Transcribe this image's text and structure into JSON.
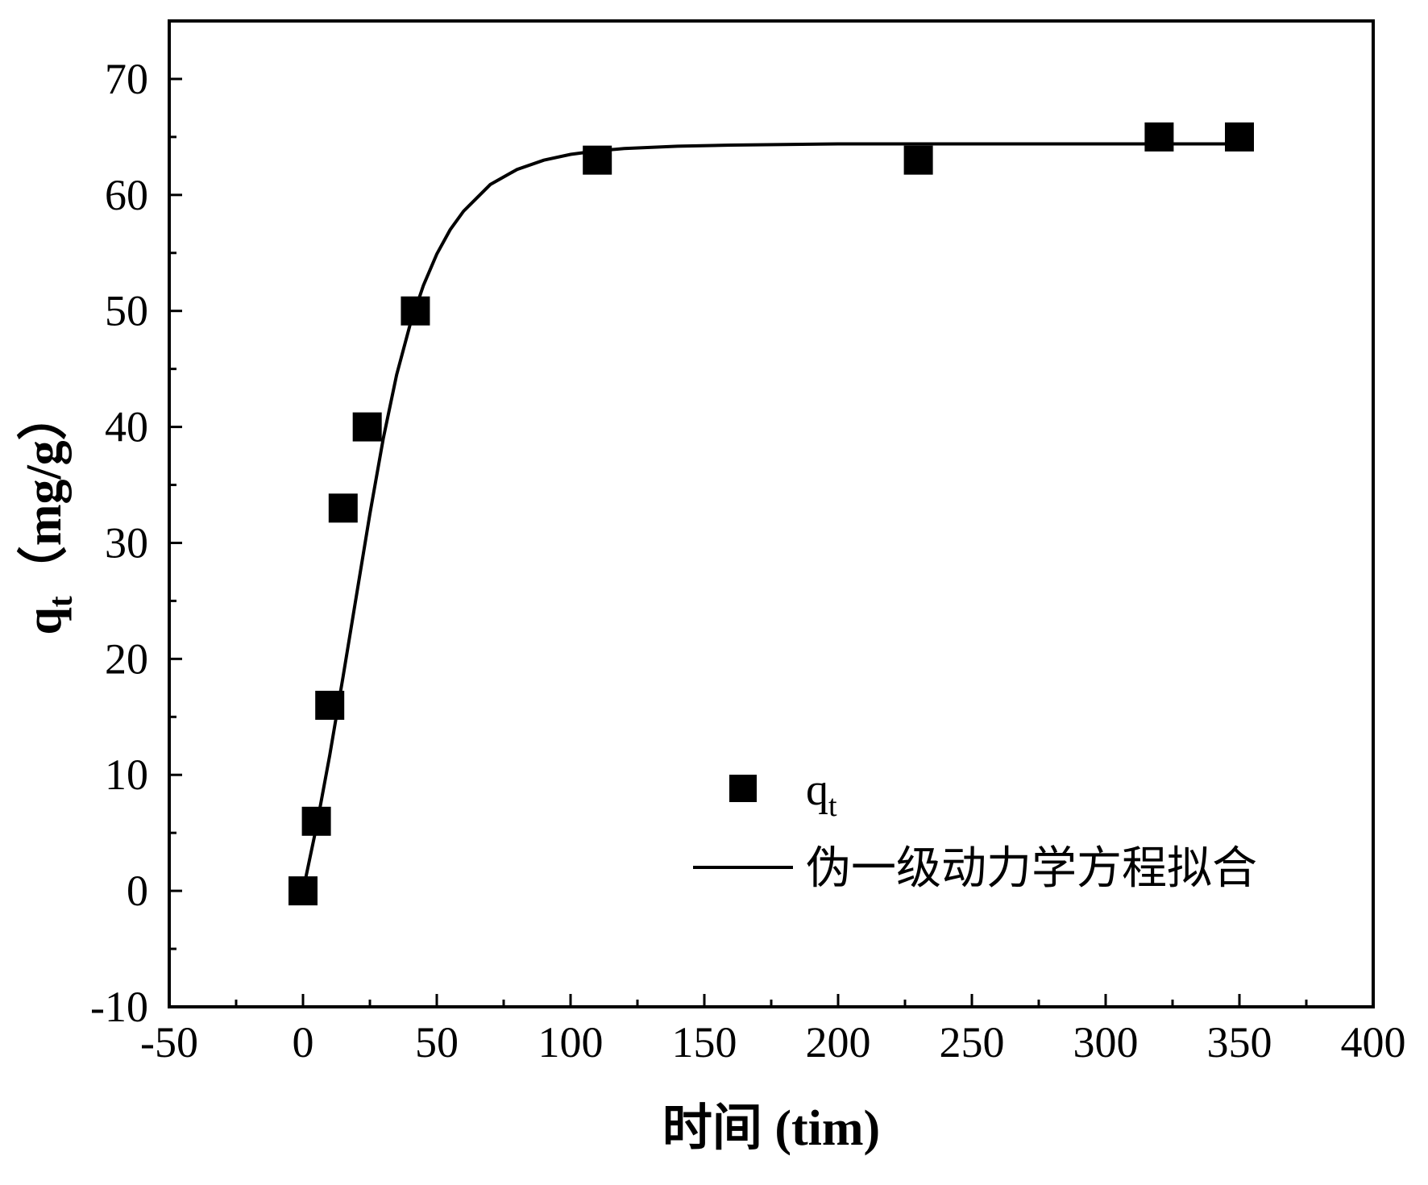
{
  "chart_data": {
    "type": "scatter",
    "title": "",
    "xlabel": "时间 (tim)",
    "ylabel": "q_t（mg/g）",
    "ylabel_parts": {
      "main": "q",
      "sub": "t",
      "unit": "（mg/g）"
    },
    "xlim": [
      -50,
      400
    ],
    "ylim": [
      -10,
      75
    ],
    "x_ticks": [
      -50,
      0,
      50,
      100,
      150,
      200,
      250,
      300,
      350,
      400
    ],
    "y_ticks": [
      -10,
      0,
      10,
      20,
      30,
      40,
      50,
      60,
      70
    ],
    "x_tick_labels": [
      "-50",
      "0",
      "50",
      "100",
      "150",
      "200",
      "250",
      "300",
      "350",
      "400"
    ],
    "y_tick_labels": [
      "-10",
      "0",
      "10",
      "20",
      "30",
      "40",
      "50",
      "60",
      "70"
    ],
    "grid": false,
    "legend_position": "bottom-right",
    "series": [
      {
        "name": "q_t",
        "name_parts": {
          "main": "q",
          "sub": "t"
        },
        "kind": "scatter",
        "marker": "square",
        "color": "#000000",
        "x": [
          0,
          5,
          10,
          15,
          24,
          42,
          110,
          230,
          320,
          350
        ],
        "y": [
          0,
          6,
          16,
          33,
          40,
          50,
          63,
          63,
          65,
          65
        ]
      },
      {
        "name": "伪一级动力学方程拟合",
        "kind": "line",
        "color": "#000000",
        "x": [
          0,
          5,
          10,
          15,
          20,
          25,
          30,
          35,
          40,
          45,
          50,
          55,
          60,
          70,
          80,
          90,
          100,
          110,
          120,
          140,
          160,
          180,
          200,
          250,
          300,
          350
        ],
        "y": [
          0,
          5.5,
          11.7,
          18.5,
          25.5,
          32.5,
          39.0,
          44.5,
          48.8,
          52.2,
          54.9,
          57.0,
          58.6,
          60.9,
          62.2,
          63.0,
          63.5,
          63.8,
          64.0,
          64.2,
          64.3,
          64.35,
          64.4,
          64.4,
          64.4,
          64.4
        ]
      }
    ]
  }
}
